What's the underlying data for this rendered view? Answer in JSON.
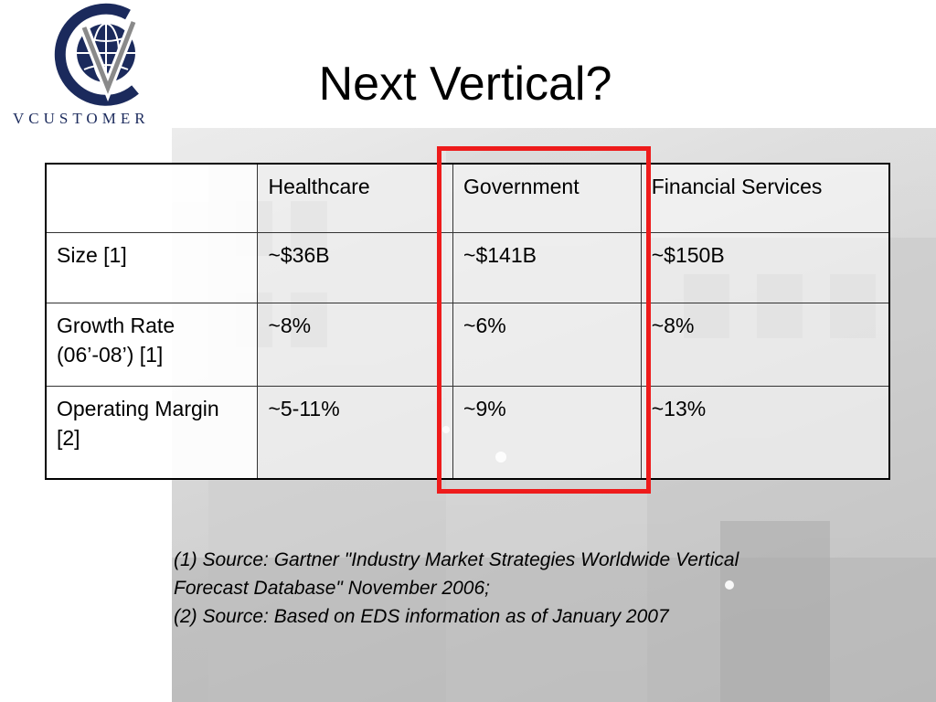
{
  "logo": {
    "wordmark": "VCUSTOMER",
    "icon": "globe-v-icon",
    "colors": {
      "navy": "#1b2a5c",
      "gray": "#8a8a8a"
    }
  },
  "title": "Next Vertical?",
  "table": {
    "header": [
      "",
      "Healthcare",
      "Government",
      "Financial Services"
    ],
    "rows": [
      {
        "label": "Size [1]",
        "values": [
          "~$36B",
          "~$141B",
          "~$150B"
        ]
      },
      {
        "label": "Growth Rate (06’-08’) [1]",
        "values": [
          "~8%",
          "~6%",
          "~8%"
        ]
      },
      {
        "label": "Operating Margin [2]",
        "values": [
          "~5-11%",
          "~9%",
          "~13%"
        ]
      }
    ],
    "highlighted_column": "Government",
    "highlight_color": "#ee1b1b"
  },
  "footnotes": [
    "(1) Source: Gartner \"Industry Market Strategies Worldwide Vertical Forecast Database\" November 2006;",
    "(2) Source: Based on EDS information as of January 2007"
  ]
}
